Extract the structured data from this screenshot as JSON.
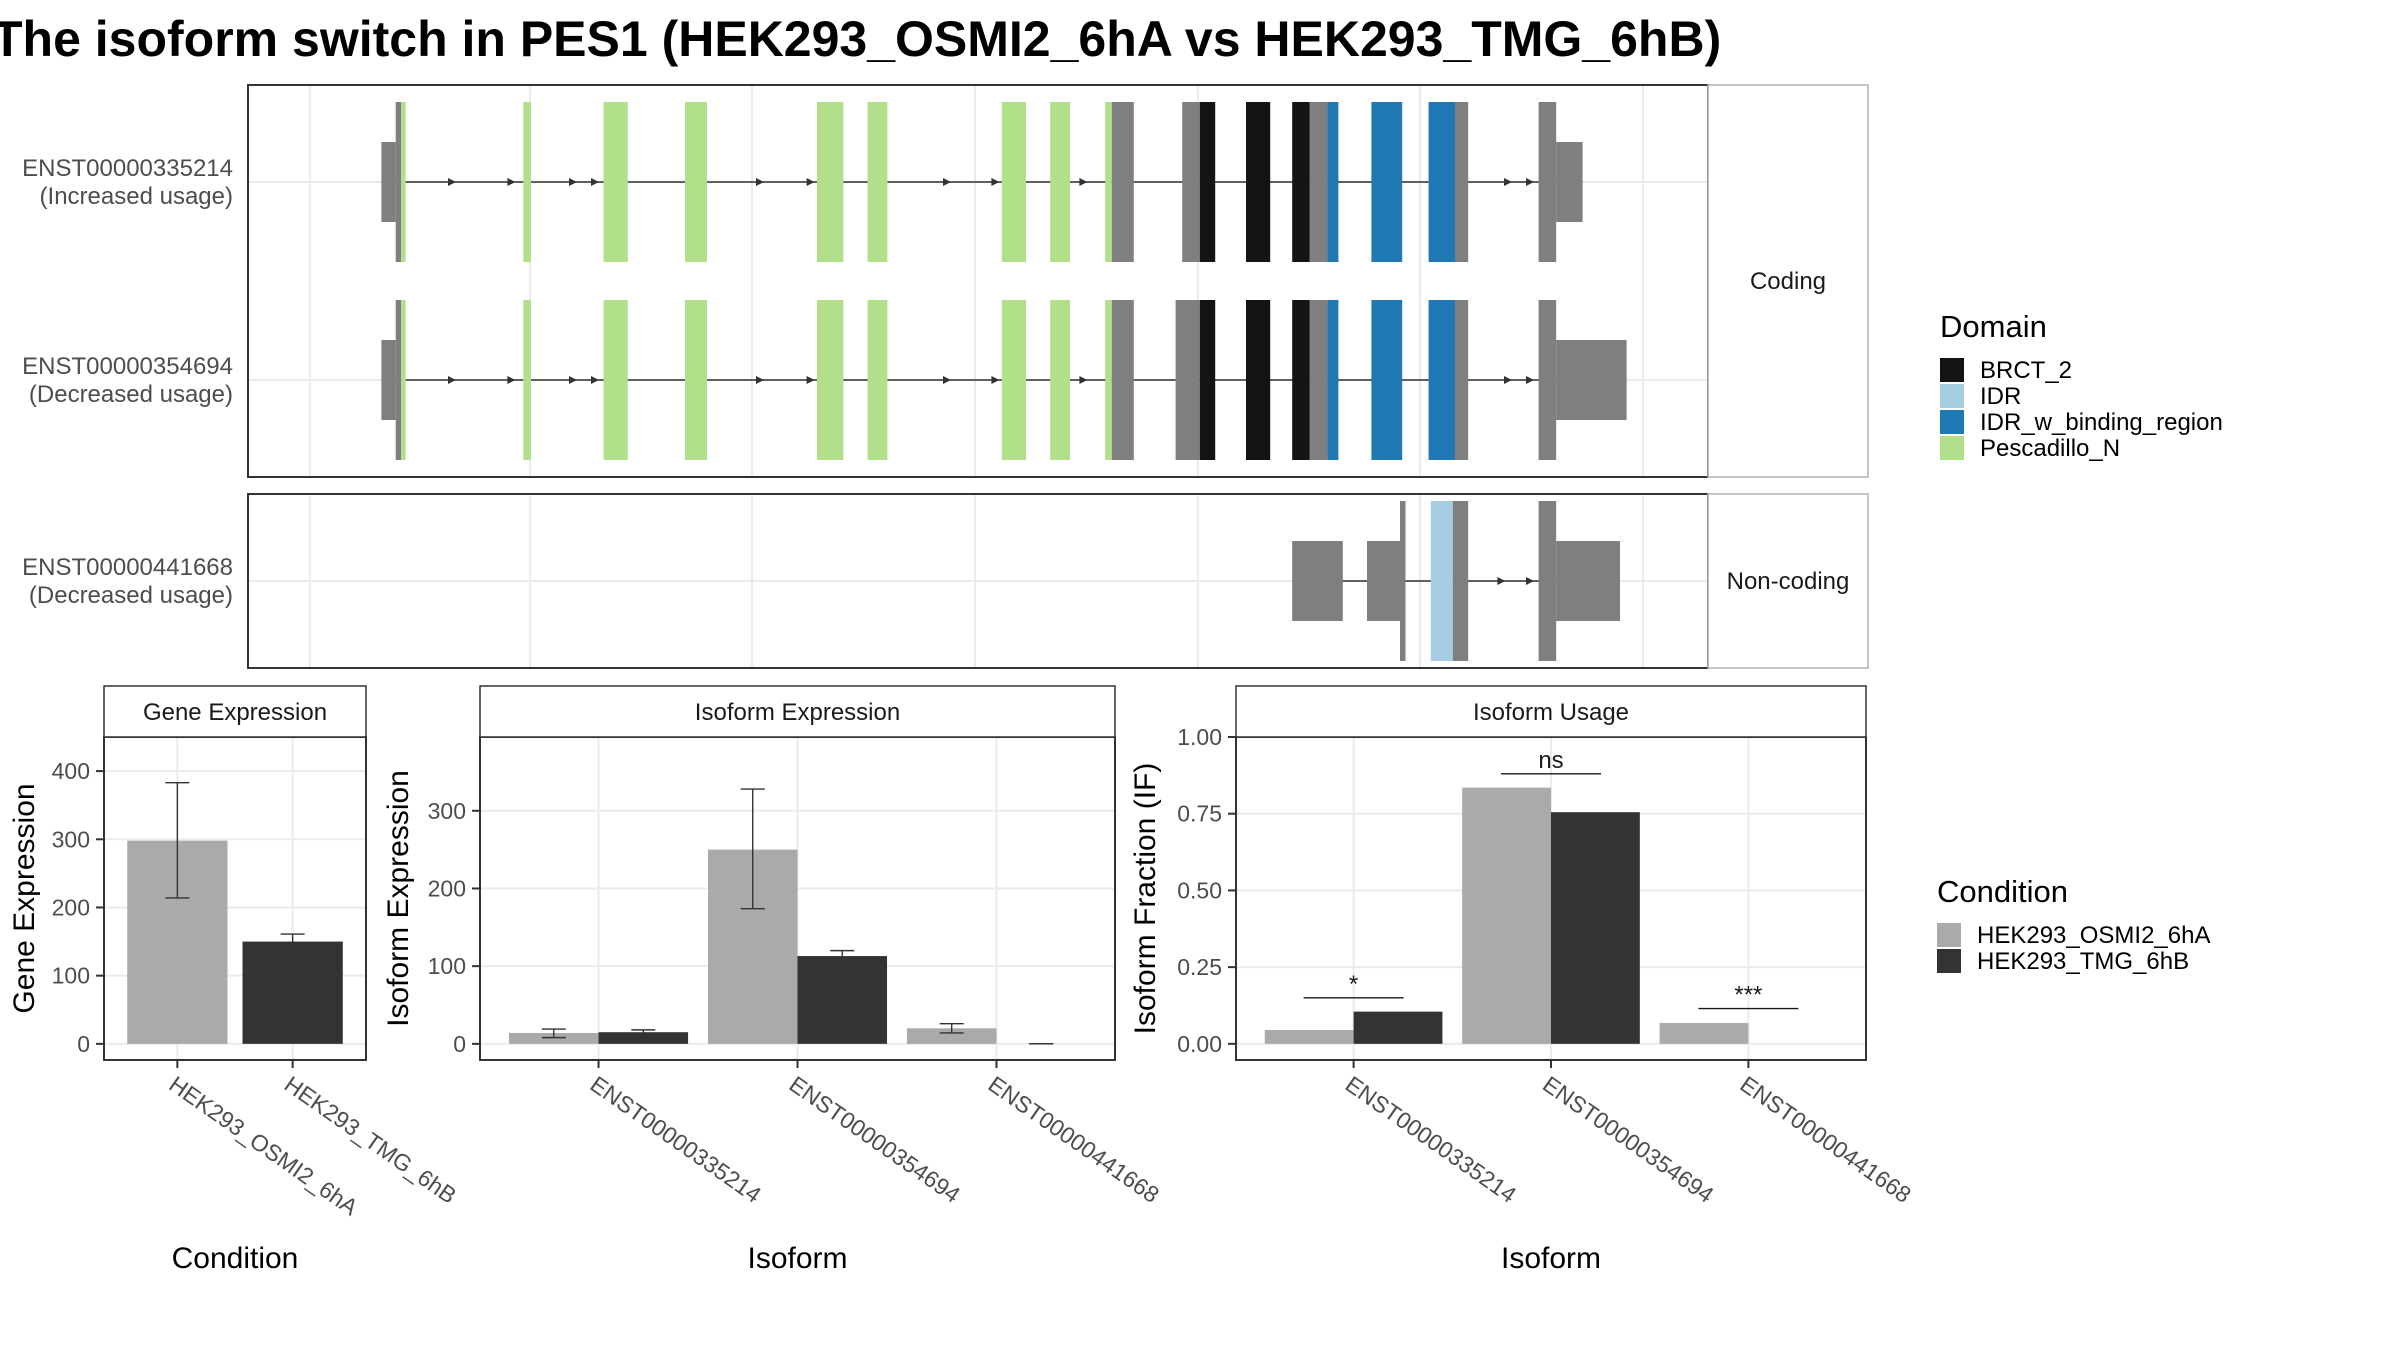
{
  "title": "The isoform switch in PES1 (HEK293_OSMI2_6hA vs HEK293_TMG_6hB)",
  "colors": {
    "BRCT_2": "#141414",
    "IDR": "#a6cee3",
    "IDR_w_binding_region": "#1f78b4",
    "Pescadillo_N": "#b2df8a",
    "exon": "#7f7f7f",
    "cond_A": "#aaaaaa",
    "cond_B": "#333333"
  },
  "structure_panel": {
    "facets": [
      {
        "label": "Coding",
        "transcripts": [
          {
            "id": "ENST00000335214",
            "usage": "(Increased usage)",
            "segments": [
              {
                "start": 6.2,
                "end": 6.85,
                "height": "utr",
                "color": "exon"
              },
              {
                "start": 6.85,
                "end": 7.1,
                "height": "cds",
                "color": "exon"
              },
              {
                "start": 7.1,
                "end": 7.3,
                "height": "cds",
                "color": "Pescadillo_N"
              },
              {
                "start": 12.65,
                "end": 13.0,
                "height": "cds",
                "color": "Pescadillo_N"
              },
              {
                "start": 16.3,
                "end": 17.4,
                "height": "cds",
                "color": "Pescadillo_N"
              },
              {
                "start": 20.0,
                "end": 21.0,
                "height": "cds",
                "color": "Pescadillo_N"
              },
              {
                "start": 26.0,
                "end": 27.2,
                "height": "cds",
                "color": "Pescadillo_N"
              },
              {
                "start": 28.3,
                "end": 29.2,
                "height": "cds",
                "color": "Pescadillo_N"
              },
              {
                "start": 34.4,
                "end": 35.5,
                "height": "cds",
                "color": "Pescadillo_N"
              },
              {
                "start": 36.6,
                "end": 37.5,
                "height": "cds",
                "color": "Pescadillo_N"
              },
              {
                "start": 39.1,
                "end": 39.4,
                "height": "cds",
                "color": "Pescadillo_N"
              },
              {
                "start": 39.4,
                "end": 40.4,
                "height": "cds",
                "color": "exon"
              },
              {
                "start": 42.6,
                "end": 43.4,
                "height": "cds",
                "color": "exon"
              },
              {
                "start": 43.4,
                "end": 44.1,
                "height": "cds",
                "color": "BRCT_2"
              },
              {
                "start": 45.5,
                "end": 46.6,
                "height": "cds",
                "color": "BRCT_2"
              },
              {
                "start": 47.6,
                "end": 48.4,
                "height": "cds",
                "color": "BRCT_2"
              },
              {
                "start": 48.4,
                "end": 49.2,
                "height": "cds",
                "color": "exon"
              },
              {
                "start": 49.2,
                "end": 49.7,
                "height": "cds",
                "color": "IDR_w_binding_region"
              },
              {
                "start": 51.2,
                "end": 52.6,
                "height": "cds",
                "color": "IDR_w_binding_region"
              },
              {
                "start": 53.8,
                "end": 55.0,
                "height": "cds",
                "color": "IDR_w_binding_region"
              },
              {
                "start": 55.0,
                "end": 55.6,
                "height": "cds",
                "color": "exon"
              },
              {
                "start": 58.8,
                "end": 59.6,
                "height": "cds",
                "color": "exon"
              },
              {
                "start": 59.6,
                "end": 60.8,
                "height": "utr",
                "color": "exon"
              }
            ],
            "arrows": [
              9.5,
              12.2,
              15.0,
              16.0,
              23.5,
              25.8,
              32.0,
              34.2,
              38.2,
              57.5,
              58.5
            ]
          },
          {
            "id": "ENST00000354694",
            "usage": "(Decreased usage)",
            "segments": [
              {
                "start": 6.2,
                "end": 6.85,
                "height": "utr",
                "color": "exon"
              },
              {
                "start": 6.85,
                "end": 7.1,
                "height": "cds",
                "color": "exon"
              },
              {
                "start": 7.1,
                "end": 7.3,
                "height": "cds",
                "color": "Pescadillo_N"
              },
              {
                "start": 12.65,
                "end": 13.0,
                "height": "cds",
                "color": "Pescadillo_N"
              },
              {
                "start": 16.3,
                "end": 17.4,
                "height": "cds",
                "color": "Pescadillo_N"
              },
              {
                "start": 20.0,
                "end": 21.0,
                "height": "cds",
                "color": "Pescadillo_N"
              },
              {
                "start": 26.0,
                "end": 27.2,
                "height": "cds",
                "color": "Pescadillo_N"
              },
              {
                "start": 28.3,
                "end": 29.2,
                "height": "cds",
                "color": "Pescadillo_N"
              },
              {
                "start": 34.4,
                "end": 35.5,
                "height": "cds",
                "color": "Pescadillo_N"
              },
              {
                "start": 36.6,
                "end": 37.5,
                "height": "cds",
                "color": "Pescadillo_N"
              },
              {
                "start": 39.1,
                "end": 39.4,
                "height": "cds",
                "color": "Pescadillo_N"
              },
              {
                "start": 39.4,
                "end": 40.4,
                "height": "cds",
                "color": "exon"
              },
              {
                "start": 42.3,
                "end": 43.4,
                "height": "cds",
                "color": "exon"
              },
              {
                "start": 43.4,
                "end": 44.1,
                "height": "cds",
                "color": "BRCT_2"
              },
              {
                "start": 45.5,
                "end": 46.6,
                "height": "cds",
                "color": "BRCT_2"
              },
              {
                "start": 47.6,
                "end": 48.4,
                "height": "cds",
                "color": "BRCT_2"
              },
              {
                "start": 48.4,
                "end": 49.2,
                "height": "cds",
                "color": "exon"
              },
              {
                "start": 49.2,
                "end": 49.7,
                "height": "cds",
                "color": "IDR_w_binding_region"
              },
              {
                "start": 51.2,
                "end": 52.6,
                "height": "cds",
                "color": "IDR_w_binding_region"
              },
              {
                "start": 53.8,
                "end": 55.0,
                "height": "cds",
                "color": "IDR_w_binding_region"
              },
              {
                "start": 55.0,
                "end": 55.6,
                "height": "cds",
                "color": "exon"
              },
              {
                "start": 58.8,
                "end": 59.6,
                "height": "cds",
                "color": "exon"
              },
              {
                "start": 59.6,
                "end": 62.8,
                "height": "utr",
                "color": "exon"
              }
            ],
            "arrows": [
              9.5,
              12.2,
              15.0,
              16.0,
              23.5,
              25.8,
              32.0,
              34.2,
              38.2,
              57.5,
              58.5
            ]
          }
        ]
      },
      {
        "label": "Non-coding",
        "transcripts": [
          {
            "id": "ENST00000441668",
            "usage": "(Decreased usage)",
            "segments": [
              {
                "start": 47.6,
                "end": 49.9,
                "height": "utr",
                "color": "exon"
              },
              {
                "start": 51.0,
                "end": 52.5,
                "height": "utr",
                "color": "exon"
              },
              {
                "start": 52.5,
                "end": 52.75,
                "height": "cds",
                "color": "exon"
              },
              {
                "start": 53.9,
                "end": 54.9,
                "height": "cds",
                "color": "IDR"
              },
              {
                "start": 54.9,
                "end": 55.6,
                "height": "cds",
                "color": "exon"
              },
              {
                "start": 58.8,
                "end": 59.6,
                "height": "cds",
                "color": "exon"
              },
              {
                "start": 59.6,
                "end": 62.5,
                "height": "utr",
                "color": "exon"
              }
            ],
            "arrows": [
              57.2,
              58.5
            ]
          }
        ]
      }
    ]
  },
  "legend_domain": {
    "title": "Domain",
    "items": [
      {
        "label": "BRCT_2",
        "color_key": "BRCT_2"
      },
      {
        "label": "IDR",
        "color_key": "IDR"
      },
      {
        "label": "IDR_w_binding_region",
        "color_key": "IDR_w_binding_region"
      },
      {
        "label": "Pescadillo_N",
        "color_key": "Pescadillo_N"
      }
    ]
  },
  "legend_condition": {
    "title": "Condition",
    "items": [
      {
        "label": "HEK293_OSMI2_6hA",
        "color_key": "cond_A"
      },
      {
        "label": "HEK293_TMG_6hB",
        "color_key": "cond_B"
      }
    ]
  },
  "chart_data": [
    {
      "type": "bar",
      "title": "Gene Expression",
      "xlabel": "Condition",
      "ylabel": "Gene Expression",
      "ylim": [
        0,
        450
      ],
      "yticks": [
        0,
        100,
        200,
        300,
        400
      ],
      "categories": [
        "HEK293_OSMI2_6hA",
        "HEK293_TMG_6hB"
      ],
      "series": [
        {
          "name": "HEK293_OSMI2_6hA",
          "values": [
            298,
            null
          ],
          "error_low": [
            214,
            null
          ],
          "error_high": [
            383,
            null
          ]
        },
        {
          "name": "HEK293_TMG_6hB",
          "values": [
            null,
            150
          ],
          "error_low": [
            null,
            140
          ],
          "error_high": [
            null,
            161
          ]
        }
      ]
    },
    {
      "type": "bar",
      "title": "Isoform Expression",
      "xlabel": "Isoform",
      "ylabel": "Isoform Expression",
      "ylim": [
        0,
        395
      ],
      "yticks": [
        0,
        100,
        200,
        300
      ],
      "categories": [
        "ENST00000335214",
        "ENST00000354694",
        "ENST00000441668"
      ],
      "series": [
        {
          "name": "HEK293_OSMI2_6hA",
          "values": [
            14,
            250,
            20
          ],
          "error_low": [
            8,
            174,
            14
          ],
          "error_high": [
            19,
            328,
            26
          ]
        },
        {
          "name": "HEK293_TMG_6hB",
          "values": [
            15,
            113,
            0
          ],
          "error_low": [
            12,
            106,
            0
          ],
          "error_high": [
            18,
            120,
            0
          ]
        }
      ]
    },
    {
      "type": "bar",
      "title": "Isoform Usage",
      "xlabel": "Isoform",
      "ylabel": "Isoform Fraction (IF)",
      "ylim": [
        0,
        1.0
      ],
      "yticks": [
        "0.00",
        "0.25",
        "0.50",
        "0.75",
        "1.00"
      ],
      "categories": [
        "ENST00000335214",
        "ENST00000354694",
        "ENST00000441668"
      ],
      "series": [
        {
          "name": "HEK293_OSMI2_6hA",
          "values": [
            0.045,
            0.835,
            0.068
          ]
        },
        {
          "name": "HEK293_TMG_6hB",
          "values": [
            0.105,
            0.755,
            0.0
          ]
        }
      ],
      "significance": [
        "*",
        "ns",
        "***"
      ],
      "significance_y": [
        0.15,
        0.88,
        0.115
      ]
    }
  ]
}
